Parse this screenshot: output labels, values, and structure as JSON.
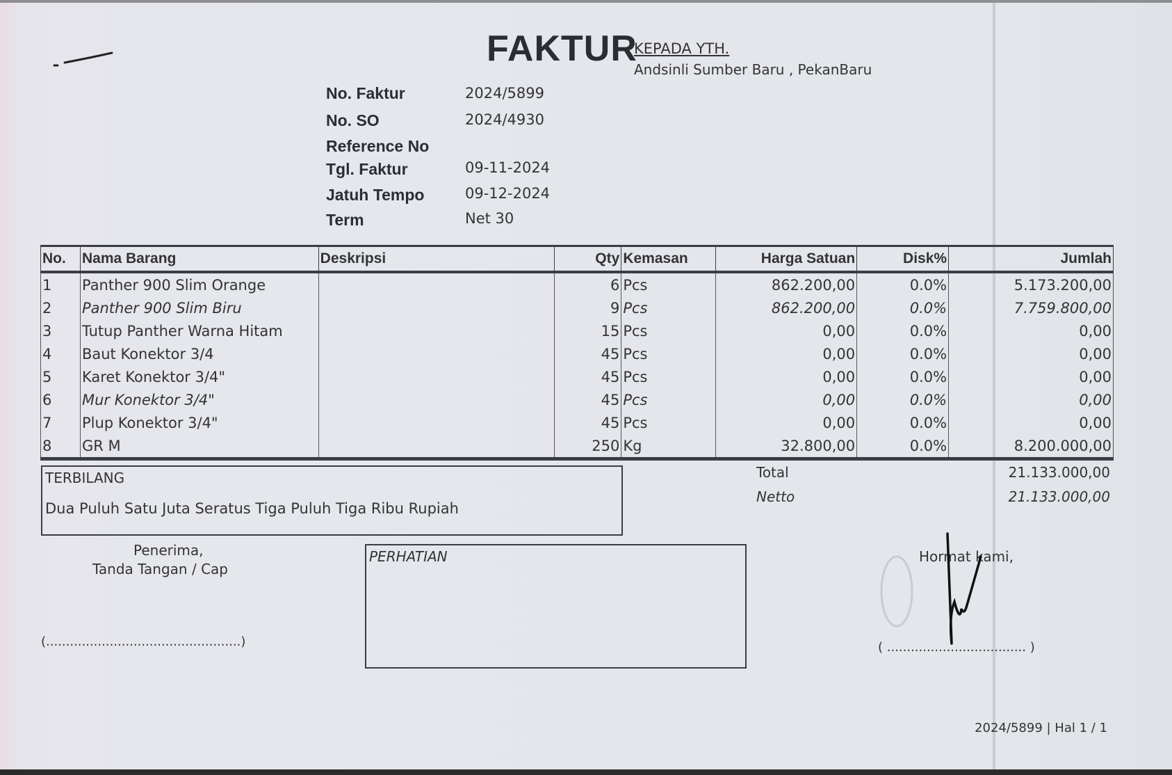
{
  "doc": {
    "title": "FAKTUR",
    "recipient_label": "KEPADA YTH.",
    "recipient": "Andsinli Sumber Baru , PekanBaru"
  },
  "header": {
    "no_faktur_label": "No. Faktur",
    "no_faktur": "2024/5899",
    "no_so_label": "No. SO",
    "no_so": "2024/4930",
    "reference_label": "Reference No",
    "reference": "",
    "tgl_faktur_label": "Tgl. Faktur",
    "tgl_faktur": "09-11-2024",
    "jatuh_tempo_label": "Jatuh Tempo",
    "jatuh_tempo": "09-12-2024",
    "term_label": "Term",
    "term": "Net 30"
  },
  "table": {
    "columns": [
      "No.",
      "Nama Barang",
      "Deskripsi",
      "Qty",
      "Kemasan",
      "Harga Satuan",
      "Disk%",
      "Jumlah"
    ],
    "rows": [
      {
        "no": "1",
        "nama": "Panther 900 Slim  Orange",
        "deskripsi": "",
        "qty": "6",
        "kemasan": "Pcs",
        "harga": "862.200,00",
        "disk": "0.0%",
        "jumlah": "5.173.200,00"
      },
      {
        "no": "2",
        "nama": "Panther 900 Slim  Biru",
        "deskripsi": "",
        "qty": "9",
        "kemasan": "Pcs",
        "harga": "862.200,00",
        "disk": "0.0%",
        "jumlah": "7.759.800,00"
      },
      {
        "no": "3",
        "nama": "Tutup Panther Warna Hitam",
        "deskripsi": "",
        "qty": "15",
        "kemasan": "Pcs",
        "harga": "0,00",
        "disk": "0.0%",
        "jumlah": "0,00"
      },
      {
        "no": "4",
        "nama": "Baut Konektor 3/4",
        "deskripsi": "",
        "qty": "45",
        "kemasan": "Pcs",
        "harga": "0,00",
        "disk": "0.0%",
        "jumlah": "0,00"
      },
      {
        "no": "5",
        "nama": "Karet Konektor 3/4\"",
        "deskripsi": "",
        "qty": "45",
        "kemasan": "Pcs",
        "harga": "0,00",
        "disk": "0.0%",
        "jumlah": "0,00"
      },
      {
        "no": "6",
        "nama": "Mur Konektor 3/4\"",
        "deskripsi": "",
        "qty": "45",
        "kemasan": "Pcs",
        "harga": "0,00",
        "disk": "0.0%",
        "jumlah": "0,00"
      },
      {
        "no": "7",
        "nama": "Plup Konektor 3/4\"",
        "deskripsi": "",
        "qty": "45",
        "kemasan": "Pcs",
        "harga": "0,00",
        "disk": "0.0%",
        "jumlah": "0,00"
      },
      {
        "no": "8",
        "nama": "GR M",
        "deskripsi": "",
        "qty": "250",
        "kemasan": "Kg",
        "harga": "32.800,00",
        "disk": "0.0%",
        "jumlah": "8.200.000,00"
      }
    ]
  },
  "terbilang": {
    "label": "TERBILANG",
    "text": "Dua Puluh Satu Juta Seratus Tiga Puluh Tiga Ribu Rupiah"
  },
  "totals": {
    "total_label": "Total",
    "total": "21.133.000,00",
    "netto_label": "Netto",
    "netto": "21.133.000,00"
  },
  "receiver": {
    "line1": "Penerima,",
    "line2": "Tanda Tangan / Cap",
    "signature_line": "(.................................................)"
  },
  "perhatian": {
    "label": "PERHATIAN"
  },
  "sender": {
    "label": "Hormat kami,",
    "signature_line": "( ................................... )"
  },
  "footer": {
    "page_ref": "2024/5899 | Hal 1 / 1"
  }
}
